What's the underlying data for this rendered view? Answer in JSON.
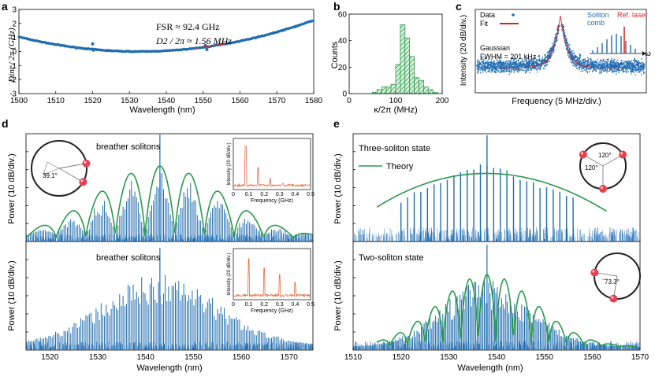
{
  "colors": {
    "data": "#1f6db3",
    "fit": "#d62728",
    "theory": "#2a9a4a",
    "inset": "#e8693f",
    "hist": "#2a9a4a",
    "circle": "#222222",
    "soliton": "#e8404f"
  },
  "panel_labels": {
    "a": "a",
    "b": "b",
    "c": "c",
    "d": "d",
    "e": "e"
  },
  "chart_data": [
    {
      "id": "a",
      "type": "scatter",
      "ylabel": "Dint / 2π (GHz)",
      "xlabel": "Wavelength (nm)",
      "xlim": [
        1500,
        1580
      ],
      "ylim": [
        -3,
        3
      ],
      "xticks": [
        1500,
        1510,
        1520,
        1530,
        1540,
        1550,
        1560,
        1570,
        1580
      ],
      "yticks": [
        -3,
        -2,
        -1,
        0,
        1,
        2,
        3
      ],
      "annotations": [
        "FSR ≈ 92.4 GHz",
        "D2 / 2π ≈ 1.56 MHz"
      ],
      "curve": {
        "x0": 1532.5,
        "a": 0.000988
      },
      "outliers": [
        [
          1520.2,
          0.1
        ],
        [
          1520,
          0.55
        ],
        [
          1551,
          0.15
        ],
        [
          1550.6,
          0.42
        ]
      ]
    },
    {
      "id": "b",
      "type": "bar",
      "ylabel": "Counts",
      "xlabel": "κ/2π (MHz)",
      "xlim": [
        0,
        200
      ],
      "ylim": [
        0,
        60
      ],
      "xticks": [
        0,
        100,
        200
      ],
      "yticks": [
        0,
        20,
        40,
        60
      ],
      "bin_width": 10,
      "bins": [
        [
          50,
          1
        ],
        [
          60,
          3
        ],
        [
          70,
          5
        ],
        [
          80,
          5
        ],
        [
          90,
          7
        ],
        [
          100,
          22
        ],
        [
          110,
          52
        ],
        [
          120,
          42
        ],
        [
          130,
          28
        ],
        [
          140,
          12
        ],
        [
          150,
          10
        ],
        [
          160,
          5
        ],
        [
          170,
          3
        ],
        [
          180,
          1
        ]
      ]
    },
    {
      "id": "c",
      "type": "scatter",
      "ylabel": "Intensity (20 dB/div.)",
      "xlabel": "Frequency (5 MHz/div.)",
      "legend": {
        "data": "Data",
        "fit": "Fit"
      },
      "annotation": "Gaussian FWHM = 201 kHz",
      "inset_labels": {
        "comb": "Soliton comb",
        "laser": "Ref. laser",
        "axis": "ω"
      }
    },
    {
      "id": "d",
      "type": "bar",
      "ylabel": "Power (10 dB/div.)",
      "xlabel": "Wavelength (nm)",
      "xlim": [
        1515,
        1575
      ],
      "xticks": [
        1520,
        1530,
        1540,
        1550,
        1560,
        1570
      ],
      "top": {
        "title": "breather solitons",
        "angle_label": "39.1°",
        "theory_peaks": [
          1524.8,
          1530.5,
          1536.8,
          1543.0,
          1549.2,
          1555.4,
          1561.5,
          1567.7
        ]
      },
      "bottom": {
        "title": "breather solitons"
      },
      "inset": {
        "ylabel": "Intensity (20 dB/div.)",
        "xlabel": "Frequency (GHz)",
        "xticks": [
          "0",
          "0.1",
          "0.2",
          "0.3",
          "0.4",
          "0.5"
        ]
      }
    },
    {
      "id": "e",
      "type": "bar",
      "ylabel": "Power (10 dB/div.)",
      "xlabel": "Wavelength (nm)",
      "xlim": [
        1510,
        1570
      ],
      "xticks": [
        1510,
        1520,
        1530,
        1540,
        1550,
        1560,
        1570
      ],
      "top": {
        "title": "Three-soliton state",
        "legend": "Theory",
        "angle_labels": [
          "120°",
          "120°"
        ]
      },
      "bottom": {
        "title": "Two-soliton state",
        "angle_label": "73.3°"
      }
    }
  ]
}
